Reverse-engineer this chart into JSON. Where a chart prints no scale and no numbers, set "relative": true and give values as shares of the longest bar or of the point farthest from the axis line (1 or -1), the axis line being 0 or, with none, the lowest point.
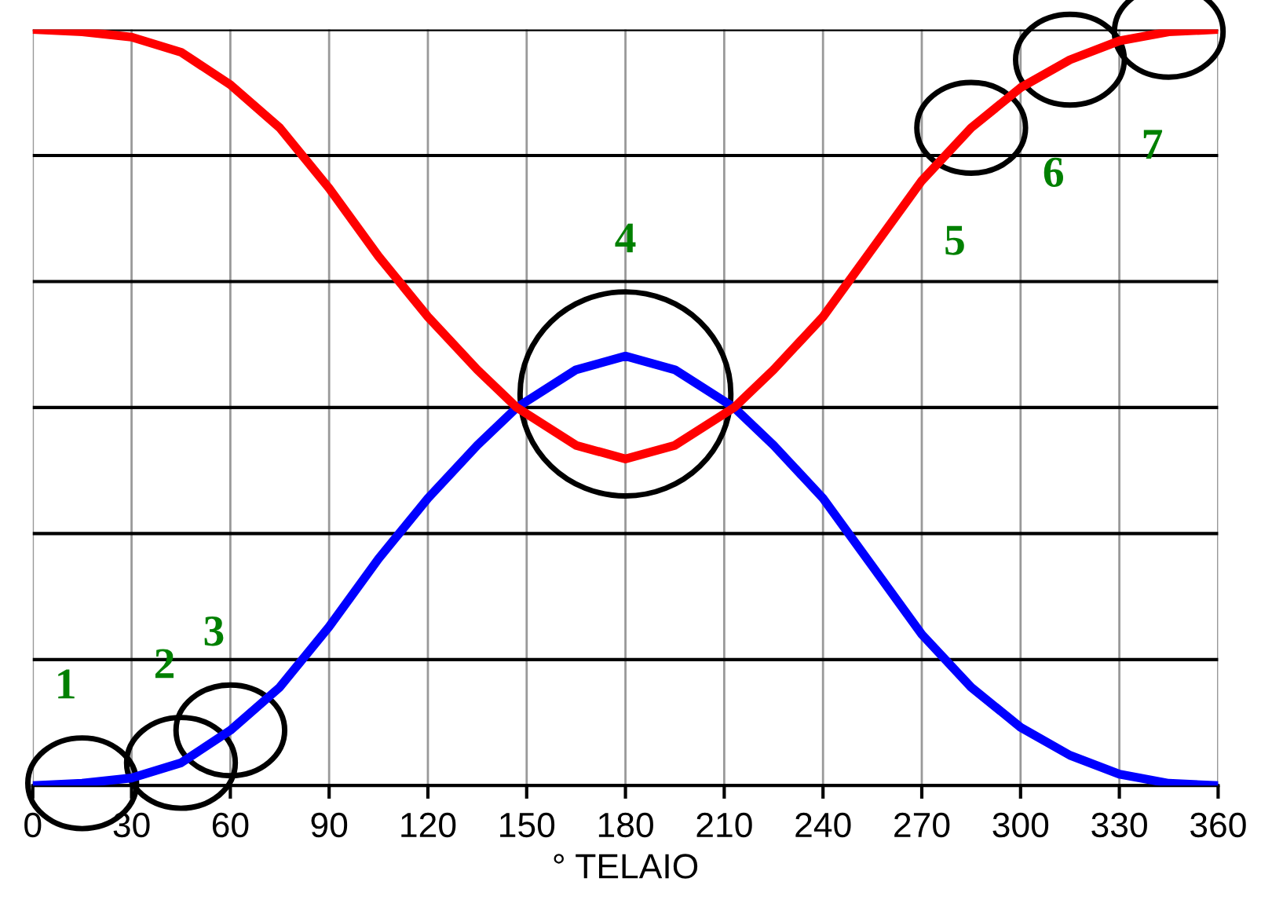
{
  "chart_data": {
    "type": "line",
    "relative": true,
    "xlabel": "° TELAIO",
    "xlim": [
      0,
      360
    ],
    "xticks": [
      0,
      30,
      60,
      90,
      120,
      150,
      180,
      210,
      240,
      270,
      300,
      330,
      360
    ],
    "grid": true,
    "line_style": "solid",
    "marker": "none",
    "x": [
      0,
      15,
      30,
      45,
      60,
      75,
      90,
      105,
      120,
      135,
      147,
      165,
      180,
      195,
      213,
      225,
      240,
      255,
      270,
      285,
      300,
      315,
      330,
      345,
      360
    ],
    "series": [
      {
        "color": "#0000ff",
        "values": [
          0,
          0.003,
          0.01,
          0.03,
          0.073,
          0.13,
          0.21,
          0.3,
          0.38,
          0.45,
          0.5,
          0.55,
          0.568,
          0.55,
          0.5,
          0.45,
          0.38,
          0.29,
          0.2,
          0.13,
          0.077,
          0.04,
          0.015,
          0.003,
          0
        ]
      },
      {
        "color": "#ff0000",
        "values": [
          1,
          0.997,
          0.99,
          0.97,
          0.927,
          0.87,
          0.79,
          0.7,
          0.62,
          0.55,
          0.5,
          0.45,
          0.432,
          0.45,
          0.5,
          0.55,
          0.62,
          0.71,
          0.8,
          0.87,
          0.923,
          0.96,
          0.985,
          0.997,
          1
        ]
      }
    ],
    "annotations": [
      {
        "text": "1",
        "x": 15,
        "y": 0.003
      },
      {
        "text": "2",
        "x": 45,
        "y": 0.03
      },
      {
        "text": "3",
        "x": 60,
        "y": 0.073
      },
      {
        "text": "4",
        "x": 180,
        "y": 0.568
      },
      {
        "text": "5",
        "x": 285,
        "y": 0.87
      },
      {
        "text": "6",
        "x": 315,
        "y": 0.96
      },
      {
        "text": "7",
        "x": 345,
        "y": 0.997
      }
    ]
  }
}
